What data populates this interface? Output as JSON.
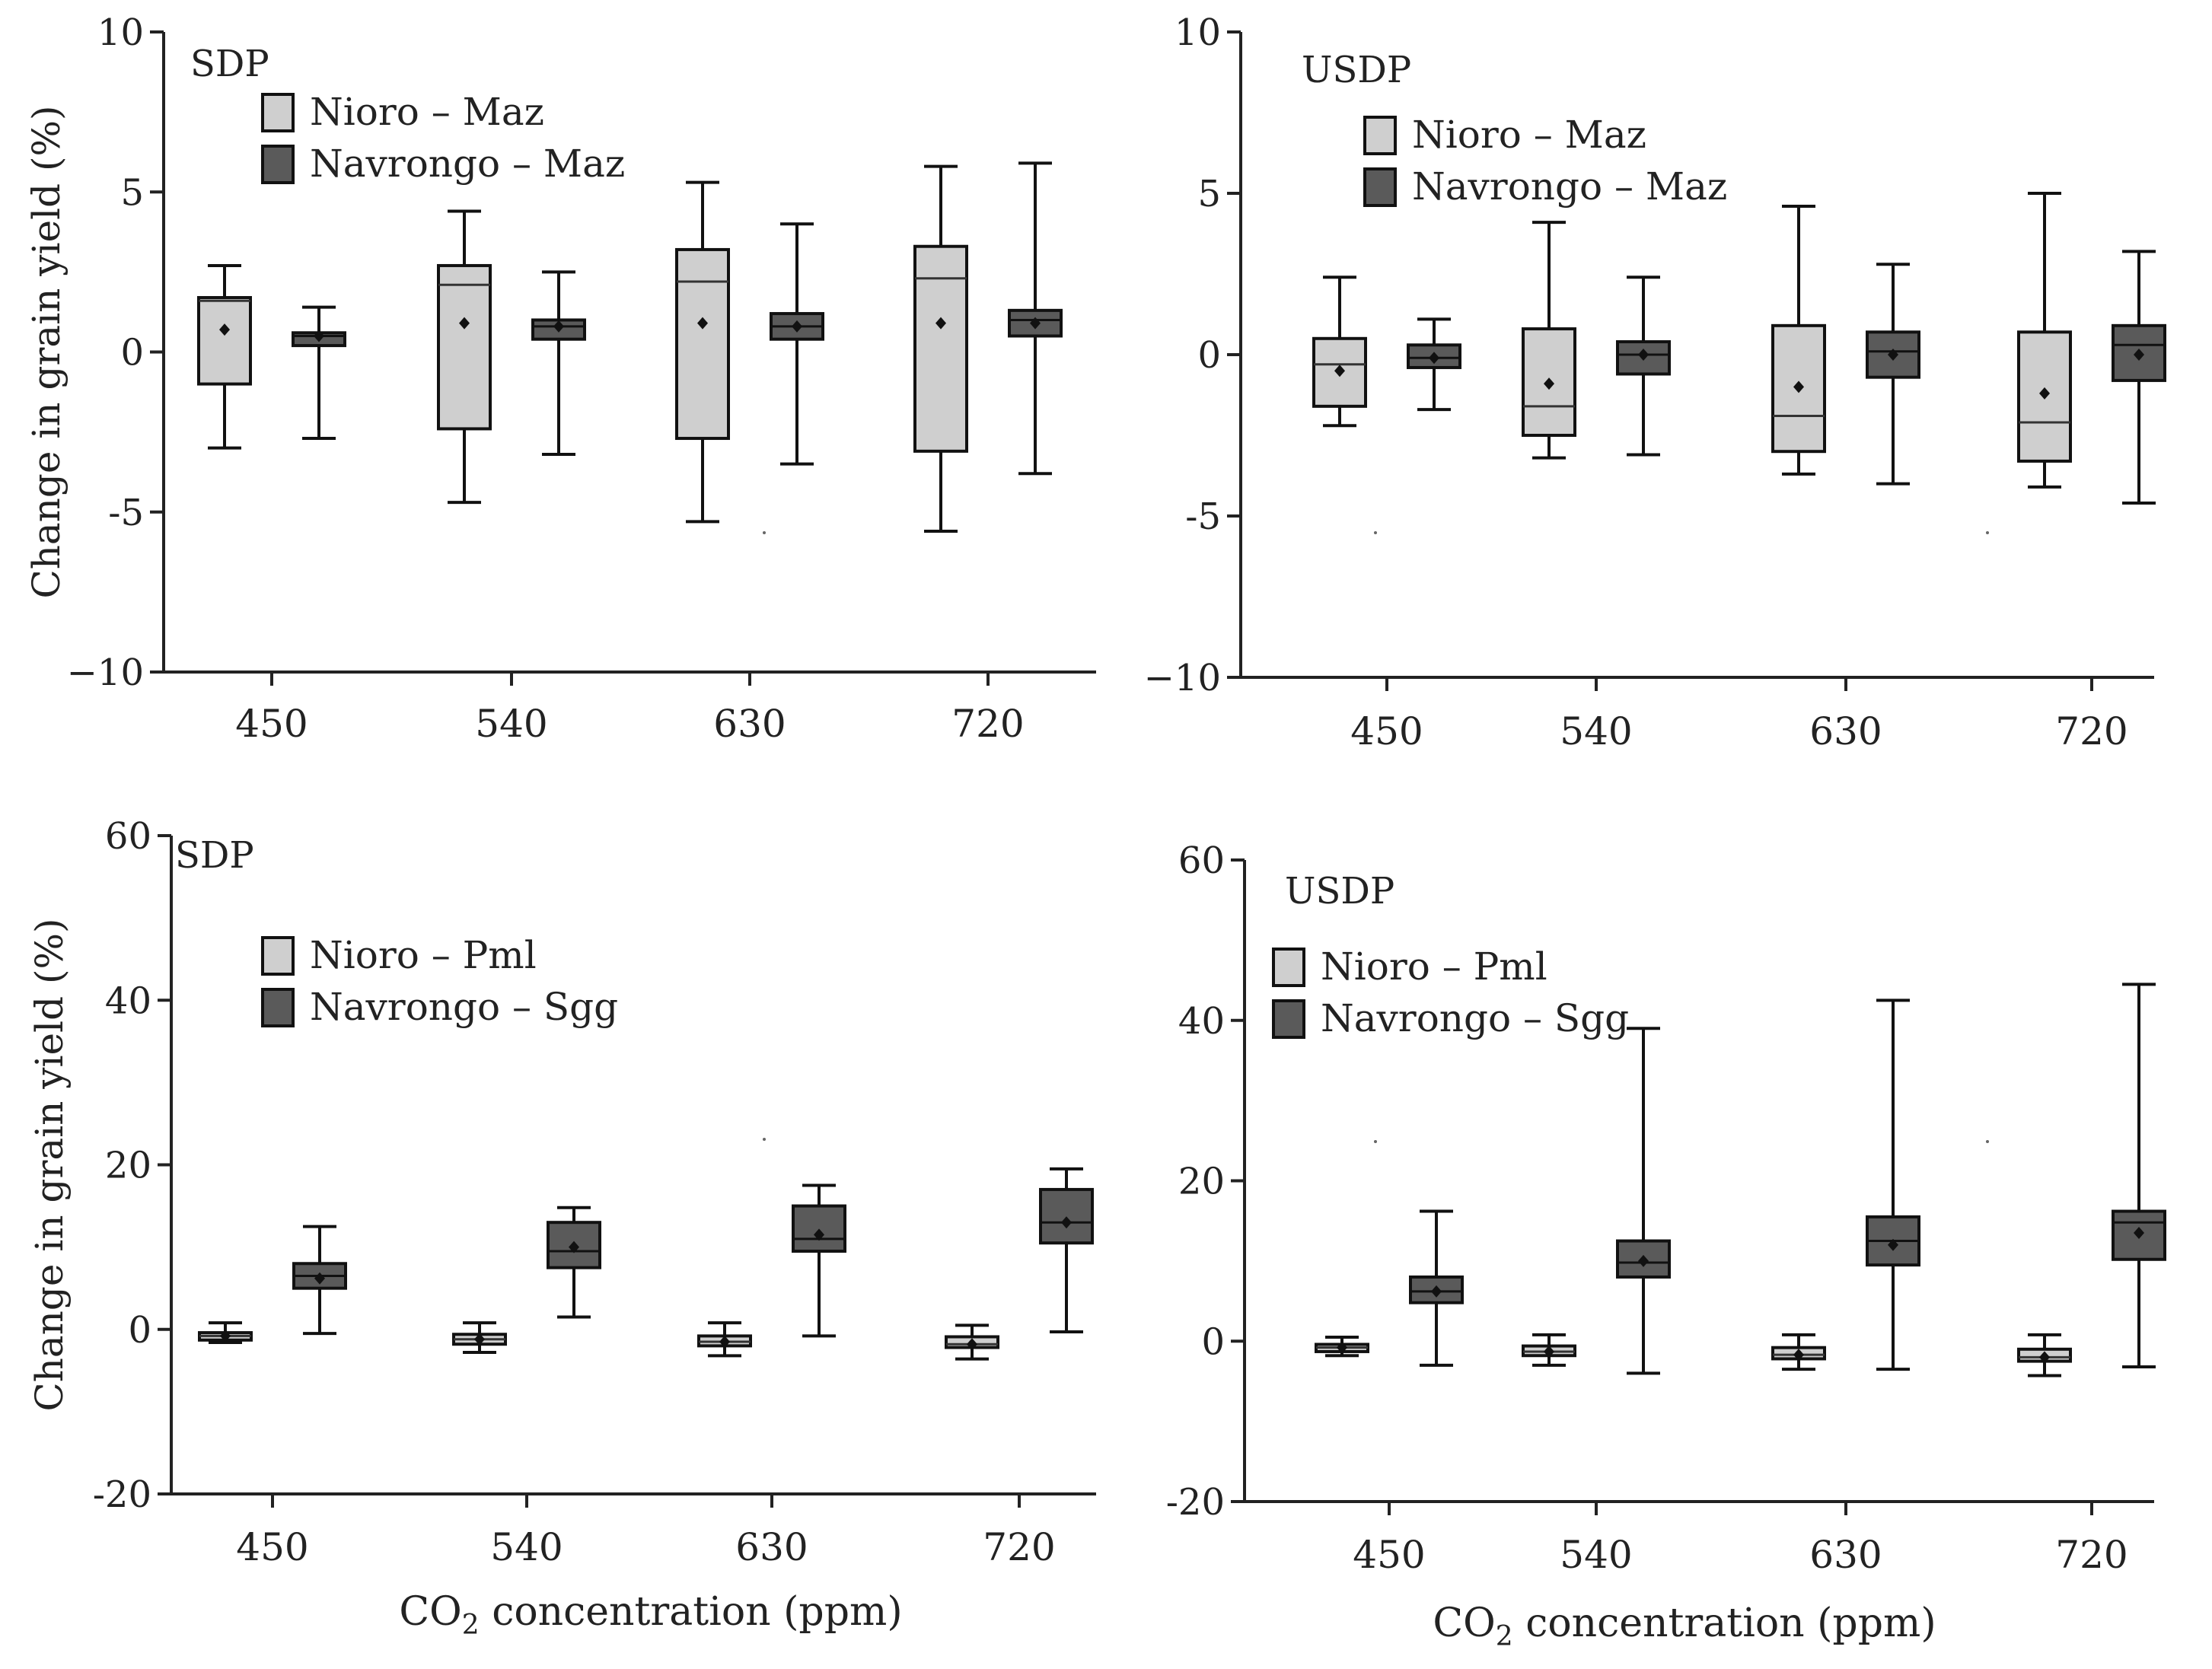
{
  "figure": {
    "xlabel_prefix": "CO",
    "xlabel_sub": "2",
    "xlabel_suffix": " concentration (ppm)"
  },
  "colors": {
    "light_box": "#cfcfcf",
    "dark_box": "#5a5a5a",
    "stroke": "#111111"
  },
  "chart_data": [
    {
      "type": "box",
      "panel_label": "SDP",
      "ylabel": "Change in grain yield (%)",
      "xlabel": "",
      "ylim": [
        -10,
        10
      ],
      "yticks": [
        -10,
        -5,
        0,
        5,
        10
      ],
      "ytick_labels": [
        "−10",
        "-5",
        "0",
        "5",
        "10"
      ],
      "categories": [
        "450",
        "540",
        "630",
        "720"
      ],
      "legend": [
        {
          "label": "Nioro – Maz",
          "color": "light"
        },
        {
          "label": "Navrongo – Maz",
          "color": "dark"
        }
      ],
      "series": [
        {
          "name": "Nioro – Maz",
          "color": "light",
          "boxes": [
            {
              "min": -3.0,
              "q1": -1.0,
              "median": 1.6,
              "q3": 1.7,
              "max": 2.7,
              "mean": 0.7
            },
            {
              "min": -4.7,
              "q1": -2.4,
              "median": 2.1,
              "q3": 2.7,
              "max": 4.4,
              "mean": 0.9
            },
            {
              "min": -5.3,
              "q1": -2.7,
              "median": 2.2,
              "q3": 3.2,
              "max": 5.3,
              "mean": 0.9
            },
            {
              "min": -5.6,
              "q1": -3.1,
              "median": 2.3,
              "q3": 3.3,
              "max": 5.8,
              "mean": 0.9
            }
          ]
        },
        {
          "name": "Navrongo – Maz",
          "color": "dark",
          "boxes": [
            {
              "min": -2.7,
              "q1": 0.2,
              "median": 0.5,
              "q3": 0.6,
              "max": 1.4,
              "mean": 0.5
            },
            {
              "min": -3.2,
              "q1": 0.4,
              "median": 0.8,
              "q3": 1.0,
              "max": 2.5,
              "mean": 0.8
            },
            {
              "min": -3.5,
              "q1": 0.4,
              "median": 0.8,
              "q3": 1.2,
              "max": 4.0,
              "mean": 0.8
            },
            {
              "min": -3.8,
              "q1": 0.5,
              "median": 1.0,
              "q3": 1.3,
              "max": 5.9,
              "mean": 0.9
            }
          ]
        }
      ]
    },
    {
      "type": "box",
      "panel_label": "USDP",
      "ylabel": "",
      "xlabel": "",
      "ylim": [
        -10,
        10
      ],
      "yticks": [
        -10,
        -5,
        0,
        5,
        10
      ],
      "ytick_labels": [
        "−10",
        "-5",
        "0",
        "5",
        "10"
      ],
      "categories": [
        "450",
        "540",
        "630",
        "720"
      ],
      "legend": [
        {
          "label": "Nioro – Maz",
          "color": "light"
        },
        {
          "label": "Navrongo – Maz",
          "color": "dark"
        }
      ],
      "series": [
        {
          "name": "Nioro – Maz",
          "color": "light",
          "boxes": [
            {
              "min": -2.2,
              "q1": -1.6,
              "median": -0.3,
              "q3": 0.5,
              "max": 2.4,
              "mean": -0.5
            },
            {
              "min": -3.2,
              "q1": -2.5,
              "median": -1.6,
              "q3": 0.8,
              "max": 4.1,
              "mean": -0.9
            },
            {
              "min": -3.7,
              "q1": -3.0,
              "median": -1.9,
              "q3": 0.9,
              "max": 4.6,
              "mean": -1.0
            },
            {
              "min": -4.1,
              "q1": -3.3,
              "median": -2.1,
              "q3": 0.7,
              "max": 5.0,
              "mean": -1.2
            }
          ]
        },
        {
          "name": "Navrongo – Maz",
          "color": "dark",
          "boxes": [
            {
              "min": -1.7,
              "q1": -0.4,
              "median": -0.1,
              "q3": 0.3,
              "max": 1.1,
              "mean": -0.1
            },
            {
              "min": -3.1,
              "q1": -0.6,
              "median": 0.0,
              "q3": 0.4,
              "max": 2.4,
              "mean": 0.0
            },
            {
              "min": -4.0,
              "q1": -0.7,
              "median": 0.1,
              "q3": 0.7,
              "max": 2.8,
              "mean": 0.0
            },
            {
              "min": -4.6,
              "q1": -0.8,
              "median": 0.3,
              "q3": 0.9,
              "max": 3.2,
              "mean": 0.0
            }
          ]
        }
      ]
    },
    {
      "type": "box",
      "panel_label": "SDP",
      "ylabel": "Change in grain yield (%)",
      "xlabel": "",
      "ylim": [
        -20,
        60
      ],
      "yticks": [
        -20,
        0,
        20,
        40,
        60
      ],
      "ytick_labels": [
        "-20",
        "0",
        "20",
        "40",
        "60"
      ],
      "categories": [
        "450",
        "540",
        "630",
        "720"
      ],
      "legend": [
        {
          "label": "Nioro – Pml",
          "color": "light"
        },
        {
          "label": "Navrongo – Sgg",
          "color": "dark"
        }
      ],
      "series": [
        {
          "name": "Nioro – Pml",
          "color": "light",
          "boxes": [
            {
              "min": -1.6,
              "q1": -1.3,
              "median": -0.8,
              "q3": -0.4,
              "max": 0.8,
              "mean": -0.8
            },
            {
              "min": -2.8,
              "q1": -1.8,
              "median": -1.2,
              "q3": -0.6,
              "max": 0.8,
              "mean": -1.2
            },
            {
              "min": -3.2,
              "q1": -2.0,
              "median": -1.5,
              "q3": -0.8,
              "max": 0.8,
              "mean": -1.5
            },
            {
              "min": -3.6,
              "q1": -2.2,
              "median": -1.8,
              "q3": -0.9,
              "max": 0.5,
              "mean": -1.8
            }
          ]
        },
        {
          "name": "Navrongo – Sgg",
          "color": "dark",
          "boxes": [
            {
              "min": -0.5,
              "q1": 5.0,
              "median": 6.5,
              "q3": 8.0,
              "max": 12.5,
              "mean": 6.2
            },
            {
              "min": 1.5,
              "q1": 7.5,
              "median": 9.5,
              "q3": 13.0,
              "max": 14.8,
              "mean": 10.0
            },
            {
              "min": -0.8,
              "q1": 9.5,
              "median": 11.0,
              "q3": 15.0,
              "max": 17.5,
              "mean": 11.5
            },
            {
              "min": -0.3,
              "q1": 10.5,
              "median": 13.0,
              "q3": 17.0,
              "max": 19.5,
              "mean": 13.0
            }
          ]
        }
      ]
    },
    {
      "type": "box",
      "panel_label": "USDP",
      "ylabel": "",
      "xlabel": "",
      "ylim": [
        -20,
        60
      ],
      "yticks": [
        -20,
        0,
        20,
        40,
        60
      ],
      "ytick_labels": [
        "-20",
        "0",
        "20",
        "40",
        "60"
      ],
      "categories": [
        "450",
        "540",
        "630",
        "720"
      ],
      "legend": [
        {
          "label": "Nioro – Pml",
          "color": "light"
        },
        {
          "label": "Navrongo – Sgg",
          "color": "dark"
        }
      ],
      "series": [
        {
          "name": "Nioro – Pml",
          "color": "light",
          "boxes": [
            {
              "min": -1.8,
              "q1": -1.3,
              "median": -0.8,
              "q3": -0.4,
              "max": 0.5,
              "mean": -0.8
            },
            {
              "min": -3.0,
              "q1": -1.8,
              "median": -1.3,
              "q3": -0.6,
              "max": 0.8,
              "mean": -1.3
            },
            {
              "min": -3.5,
              "q1": -2.2,
              "median": -1.7,
              "q3": -0.8,
              "max": 0.8,
              "mean": -1.7
            },
            {
              "min": -4.3,
              "q1": -2.5,
              "median": -2.0,
              "q3": -1.0,
              "max": 0.8,
              "mean": -2.0
            }
          ]
        },
        {
          "name": "Navrongo – Sgg",
          "color": "dark",
          "boxes": [
            {
              "min": -3.0,
              "q1": 4.8,
              "median": 6.2,
              "q3": 8.0,
              "max": 16.2,
              "mean": 6.2
            },
            {
              "min": -4.0,
              "q1": 8.0,
              "median": 9.8,
              "q3": 12.5,
              "max": 39.0,
              "mean": 10.0
            },
            {
              "min": -3.5,
              "q1": 9.5,
              "median": 12.5,
              "q3": 15.5,
              "max": 42.5,
              "mean": 12.0
            },
            {
              "min": -3.2,
              "q1": 10.2,
              "median": 14.8,
              "q3": 16.2,
              "max": 44.5,
              "mean": 13.5
            }
          ]
        }
      ]
    }
  ]
}
